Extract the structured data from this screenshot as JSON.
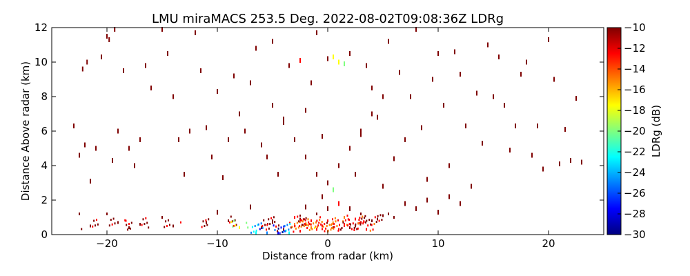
{
  "chart_data": {
    "type": "scatter",
    "title": "LMU miraMACS 253.5 Deg. 2022-08-02T09:08:36Z  LDRg",
    "xlabel": "Distance from radar (km)",
    "ylabel": "Distance Above radar  (km)",
    "xlim": [
      -25,
      25
    ],
    "ylim": [
      0,
      12
    ],
    "xticks": [
      -20,
      -10,
      0,
      10,
      20
    ],
    "yticks": [
      0,
      2,
      4,
      6,
      8,
      10,
      12
    ],
    "grid": false,
    "colorbar": {
      "label": "LDRg (dB)",
      "range": [
        -30,
        -10
      ],
      "ticks": [
        -10,
        -12,
        -14,
        -16,
        -18,
        -20,
        -22,
        -24,
        -26,
        -28,
        -30
      ],
      "colormap": "jet",
      "colors": [
        "#00007f",
        "#0000ff",
        "#007fff",
        "#00ffff",
        "#7fff7f",
        "#ffff00",
        "#ff7f00",
        "#ff0000",
        "#7f0000"
      ]
    },
    "series": [
      {
        "note_x": "km",
        "points": [
          [
            -23,
            6.3,
            -10
          ],
          [
            -22.5,
            4.6,
            -10
          ],
          [
            -22,
            5.2,
            -10
          ],
          [
            -22.2,
            9.6,
            -10
          ],
          [
            -21.8,
            10.0,
            -10
          ],
          [
            -21.5,
            3.1,
            -10
          ],
          [
            -21,
            5.0,
            -10
          ],
          [
            -20.5,
            10.3,
            -10
          ],
          [
            -20,
            11.5,
            -10
          ],
          [
            -19.3,
            11.9,
            -10
          ],
          [
            -19.8,
            11.3,
            -10
          ],
          [
            -19.5,
            4.3,
            -10
          ],
          [
            -19,
            6.0,
            -10
          ],
          [
            -18.5,
            9.5,
            -10
          ],
          [
            -18,
            5.0,
            -10
          ],
          [
            -17.5,
            4.0,
            -10
          ],
          [
            -17,
            5.5,
            -10
          ],
          [
            -16.5,
            9.8,
            -10
          ],
          [
            -16,
            8.5,
            -10
          ],
          [
            -15,
            11.9,
            -10
          ],
          [
            -14.5,
            10.5,
            -10
          ],
          [
            -14,
            8.0,
            -10
          ],
          [
            -13.5,
            5.5,
            -10
          ],
          [
            -13,
            3.5,
            -10
          ],
          [
            -12.5,
            6.0,
            -10
          ],
          [
            -12,
            11.7,
            -10
          ],
          [
            -11.5,
            9.5,
            -10
          ],
          [
            -11,
            6.2,
            -10
          ],
          [
            -10.5,
            4.5,
            -10
          ],
          [
            -10,
            8.3,
            -10
          ],
          [
            -9.5,
            3.3,
            -10
          ],
          [
            -9,
            5.5,
            -10
          ],
          [
            -8.5,
            9.2,
            -10
          ],
          [
            -8,
            7.0,
            -10
          ],
          [
            -7.5,
            6.0,
            -10
          ],
          [
            -7,
            8.8,
            -10
          ],
          [
            -6.5,
            10.8,
            -10
          ],
          [
            -6,
            5.2,
            -10
          ],
          [
            -5.5,
            4.5,
            -10
          ],
          [
            -5,
            11.2,
            -10
          ],
          [
            -4.5,
            3.5,
            -10
          ],
          [
            -4,
            6.7,
            -10
          ],
          [
            -3.5,
            9.8,
            -11
          ],
          [
            -3,
            5.5,
            -10
          ],
          [
            -2.5,
            10.1,
            -13
          ],
          [
            -2,
            7.2,
            -10
          ],
          [
            -1.5,
            8.8,
            -10
          ],
          [
            -1,
            11.7,
            -10
          ],
          [
            -0.5,
            5.7,
            -10
          ],
          [
            0,
            10.2,
            -10
          ],
          [
            0.5,
            10.3,
            -17
          ],
          [
            1,
            10.0,
            -18
          ],
          [
            1.5,
            9.9,
            -19
          ],
          [
            2,
            10.5,
            -10
          ],
          [
            2.5,
            3.5,
            -10
          ],
          [
            3,
            5.8,
            -10
          ],
          [
            3.5,
            9.8,
            -10
          ],
          [
            4,
            8.5,
            -10
          ],
          [
            4.5,
            6.8,
            -10
          ],
          [
            5,
            2.8,
            -10
          ],
          [
            5.5,
            11.2,
            -10
          ],
          [
            6,
            4.4,
            -10
          ],
          [
            6.5,
            9.4,
            -10
          ],
          [
            7,
            5.5,
            -10
          ],
          [
            7.5,
            8.0,
            -10
          ],
          [
            8,
            11.9,
            -10
          ],
          [
            8.5,
            6.2,
            -10
          ],
          [
            9,
            3.2,
            -10
          ],
          [
            9.5,
            9.0,
            -10
          ],
          [
            10,
            10.5,
            -10
          ],
          [
            10.5,
            7.5,
            -10
          ],
          [
            11,
            4.0,
            -10
          ],
          [
            11.5,
            10.6,
            -10
          ],
          [
            12,
            9.3,
            -10
          ],
          [
            12.5,
            6.3,
            -10
          ],
          [
            13,
            2.8,
            -10
          ],
          [
            13.5,
            8.2,
            -10
          ],
          [
            14,
            5.3,
            -10
          ],
          [
            14.5,
            11.0,
            -10
          ],
          [
            15,
            8.0,
            -10
          ],
          [
            15.5,
            10.3,
            -10
          ],
          [
            16,
            7.5,
            -10
          ],
          [
            16.5,
            4.9,
            -10
          ],
          [
            17,
            6.3,
            -10
          ],
          [
            17.5,
            9.3,
            -10
          ],
          [
            18,
            10.0,
            -10
          ],
          [
            18.5,
            4.6,
            -10
          ],
          [
            19,
            6.3,
            -10
          ],
          [
            19.5,
            3.8,
            -10
          ],
          [
            20,
            11.3,
            -10
          ],
          [
            20.5,
            9.0,
            -10
          ],
          [
            21,
            4.1,
            -10
          ],
          [
            21.5,
            6.1,
            -10
          ],
          [
            22,
            4.3,
            -10
          ],
          [
            22.5,
            7.9,
            -10
          ],
          [
            23,
            4.2,
            -10
          ],
          [
            -22.5,
            1.2,
            -10
          ],
          [
            -21.5,
            0.5,
            -10
          ],
          [
            -20,
            1.2,
            -10
          ],
          [
            -19,
            0.7,
            -10
          ],
          [
            -18,
            0.4,
            -10
          ],
          [
            -17,
            0.6,
            -10
          ],
          [
            -15,
            1.0,
            -10
          ],
          [
            -14,
            0.5,
            -10
          ],
          [
            -11,
            0.7,
            -10
          ],
          [
            -10,
            1.3,
            -10
          ],
          [
            -9,
            0.8,
            -10
          ],
          [
            -8,
            0.4,
            -18
          ],
          [
            -7,
            1.6,
            -10
          ],
          [
            -6.5,
            0.1,
            -22
          ],
          [
            -6,
            0.4,
            -10
          ],
          [
            -5.5,
            0.1,
            -25
          ],
          [
            -5,
            0.8,
            -10
          ],
          [
            -4.5,
            0.1,
            -27
          ],
          [
            -4,
            0.3,
            -10
          ],
          [
            -3.5,
            0.1,
            -23
          ],
          [
            -3,
            0.5,
            -14
          ],
          [
            -2.5,
            0.2,
            -12
          ],
          [
            -2,
            0.6,
            -11
          ],
          [
            -1.5,
            0.4,
            -15
          ],
          [
            -1,
            0.3,
            -13
          ],
          [
            -0.5,
            0.5,
            -12
          ],
          [
            0,
            0.2,
            -14
          ],
          [
            0.5,
            0.4,
            -11
          ],
          [
            1,
            0.3,
            -13
          ],
          [
            1.5,
            0.6,
            -12
          ],
          [
            2,
            0.4,
            -10
          ],
          [
            2.5,
            0.5,
            -11
          ],
          [
            3,
            0.7,
            -10
          ],
          [
            3.5,
            0.3,
            -12
          ],
          [
            4,
            0.8,
            -10
          ],
          [
            4.5,
            0.9,
            -10
          ],
          [
            5,
            1.1,
            -10
          ],
          [
            5.5,
            1.2,
            -10
          ],
          [
            6,
            1.0,
            -10
          ],
          [
            7,
            1.8,
            -10
          ],
          [
            8,
            1.5,
            -10
          ],
          [
            9,
            2.0,
            -10
          ],
          [
            10,
            1.3,
            -10
          ],
          [
            11,
            2.2,
            -10
          ],
          [
            12,
            1.8,
            -10
          ],
          [
            -1,
            1.2,
            -11
          ],
          [
            0,
            1.5,
            -10
          ],
          [
            1,
            1.8,
            -12
          ],
          [
            -0.5,
            2.2,
            -10
          ],
          [
            0.5,
            2.6,
            -21
          ],
          [
            -2,
            1.6,
            -10
          ],
          [
            2,
            1.5,
            -10
          ],
          [
            -3,
            1.0,
            -12
          ],
          [
            3,
            1.2,
            -11
          ],
          [
            0,
            0.8,
            -12
          ],
          [
            -1.5,
            0.8,
            -13
          ],
          [
            1.5,
            1.0,
            -14
          ],
          [
            -2.5,
            0.9,
            -10
          ],
          [
            2.5,
            0.9,
            -12
          ],
          [
            0,
            3.0,
            -10
          ],
          [
            -1,
            3.5,
            -10
          ],
          [
            1,
            4.0,
            -10
          ],
          [
            -2,
            4.5,
            -10
          ],
          [
            2,
            5.0,
            -10
          ],
          [
            -3,
            5.5,
            -10
          ],
          [
            3,
            6.0,
            -10
          ],
          [
            -4,
            6.5,
            -10
          ],
          [
            4,
            7.0,
            -10
          ],
          [
            -5,
            7.5,
            -10
          ],
          [
            5,
            8.0,
            -10
          ]
        ]
      }
    ]
  }
}
